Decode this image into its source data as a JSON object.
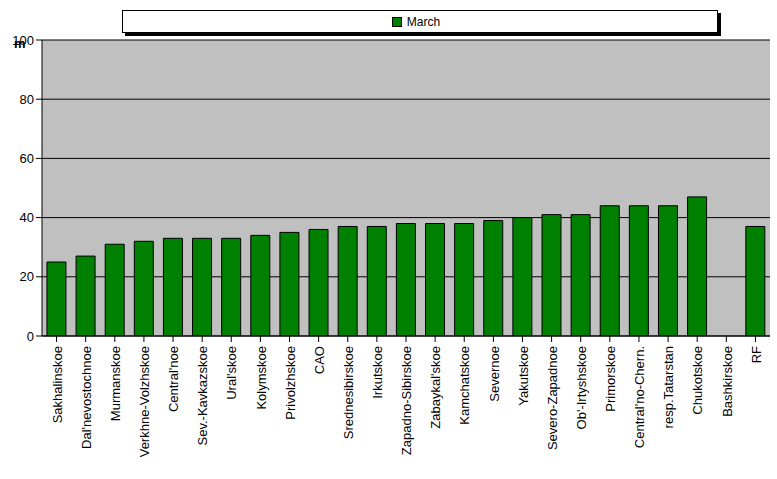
{
  "chart_data": {
    "type": "bar",
    "y_label": "m",
    "categories": [
      "Sakhalinskoe",
      "Dal'nevostochnoe",
      "Murmanskoe",
      "Verkhne-Volzhskoe",
      "Central'noe",
      "Sev.-Kavkazskoe",
      "Ural'skoe",
      "Kolymskoe",
      "Privolzhskoe",
      "CAO",
      "Srednesibirskoe",
      "Irkutskoe",
      "Zapadno-Sibirskoe",
      "Zabaykal'skoe",
      "Kamchatskoe",
      "Severnoe",
      "Yakutskoe",
      "Severo-Zapadnoe",
      "Ob'-Irtyshskoe",
      "Primorskoe",
      "Central'no-Chern.",
      "resp.Tatarstan",
      "Chukotskoe",
      "Bashkirskoe",
      "RF"
    ],
    "series": [
      {
        "name": "March",
        "color": "#008000",
        "values": [
          25,
          27,
          31,
          32,
          33,
          33,
          33,
          34,
          35,
          36,
          37,
          37,
          38,
          38,
          38,
          39,
          40,
          41,
          41,
          44,
          44,
          44,
          47,
          null,
          37
        ]
      }
    ],
    "ylim": [
      0,
      100
    ],
    "yticks": [
      0,
      20,
      40,
      60,
      80,
      100
    ],
    "grid": true,
    "legend": "top"
  }
}
